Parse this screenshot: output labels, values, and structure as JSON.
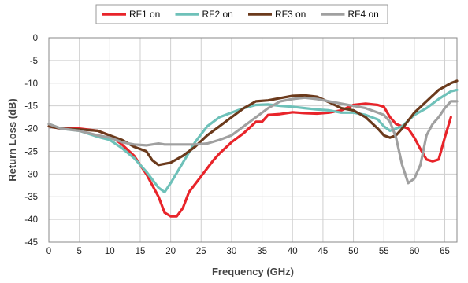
{
  "chart_data": {
    "type": "line",
    "xlabel": "Frequency (GHz)",
    "ylabel": "Return Loss (dB)",
    "xlim": [
      0,
      67
    ],
    "ylim": [
      -45,
      0
    ],
    "xticks": [
      0,
      5,
      10,
      15,
      20,
      25,
      30,
      35,
      40,
      45,
      50,
      55,
      60,
      65
    ],
    "yticks": [
      0,
      -5,
      -10,
      -15,
      -20,
      -25,
      -30,
      -35,
      -40,
      -45
    ],
    "grid": true,
    "legend_position": "top",
    "series": [
      {
        "name": "RF1 on",
        "color": "#e8242a",
        "points": [
          [
            0,
            -19.5
          ],
          [
            2,
            -20
          ],
          [
            5,
            -20
          ],
          [
            8,
            -20.5
          ],
          [
            10,
            -21.5
          ],
          [
            12,
            -23.5
          ],
          [
            14,
            -26
          ],
          [
            16,
            -30
          ],
          [
            18,
            -35
          ],
          [
            19,
            -38.5
          ],
          [
            20,
            -39.3
          ],
          [
            21,
            -39.3
          ],
          [
            22,
            -37.5
          ],
          [
            23,
            -34
          ],
          [
            25,
            -30.5
          ],
          [
            27,
            -27
          ],
          [
            28,
            -25.5
          ],
          [
            30,
            -23
          ],
          [
            32,
            -21
          ],
          [
            34,
            -18.5
          ],
          [
            35,
            -18.5
          ],
          [
            36,
            -17
          ],
          [
            38,
            -16.8
          ],
          [
            40,
            -16.4
          ],
          [
            42,
            -16.6
          ],
          [
            44,
            -16.7
          ],
          [
            46,
            -16.5
          ],
          [
            48,
            -16
          ],
          [
            50,
            -14.8
          ],
          [
            52,
            -14.5
          ],
          [
            54,
            -14.8
          ],
          [
            55,
            -15.2
          ],
          [
            56,
            -17.5
          ],
          [
            57,
            -19
          ],
          [
            59,
            -20
          ],
          [
            60,
            -22
          ],
          [
            61,
            -24.5
          ],
          [
            62,
            -26.8
          ],
          [
            63,
            -27.2
          ],
          [
            64,
            -26.8
          ],
          [
            65,
            -22
          ],
          [
            66,
            -17.5
          ]
        ]
      },
      {
        "name": "RF2 on",
        "color": "#6ec1b9",
        "points": [
          [
            0,
            -19
          ],
          [
            2,
            -20
          ],
          [
            5,
            -20.5
          ],
          [
            8,
            -21.8
          ],
          [
            10,
            -22.5
          ],
          [
            12,
            -24.3
          ],
          [
            14,
            -26.5
          ],
          [
            16,
            -29.5
          ],
          [
            18,
            -33
          ],
          [
            19,
            -34
          ],
          [
            20,
            -32
          ],
          [
            22,
            -27.5
          ],
          [
            24,
            -23
          ],
          [
            26,
            -19.5
          ],
          [
            28,
            -17.5
          ],
          [
            30,
            -16.5
          ],
          [
            32,
            -15.5
          ],
          [
            34,
            -14.8
          ],
          [
            36,
            -14.7
          ],
          [
            38,
            -15
          ],
          [
            40,
            -15.2
          ],
          [
            42,
            -15.5
          ],
          [
            44,
            -15.8
          ],
          [
            46,
            -16
          ],
          [
            48,
            -16.5
          ],
          [
            50,
            -16.5
          ],
          [
            52,
            -17
          ],
          [
            54,
            -18
          ],
          [
            55,
            -19.5
          ],
          [
            56,
            -20.5
          ],
          [
            58,
            -19.5
          ],
          [
            60,
            -17
          ],
          [
            62,
            -15.5
          ],
          [
            64,
            -13.5
          ],
          [
            66,
            -11.8
          ],
          [
            67,
            -11.5
          ]
        ]
      },
      {
        "name": "RF3 on",
        "color": "#6b3a1c",
        "points": [
          [
            0,
            -19.5
          ],
          [
            2,
            -20
          ],
          [
            5,
            -20.2
          ],
          [
            8,
            -20.5
          ],
          [
            10,
            -21.5
          ],
          [
            12,
            -22.5
          ],
          [
            14,
            -24
          ],
          [
            16,
            -25
          ],
          [
            17,
            -27
          ],
          [
            18,
            -28
          ],
          [
            20,
            -27.5
          ],
          [
            22,
            -26
          ],
          [
            24,
            -24
          ],
          [
            26,
            -21.5
          ],
          [
            28,
            -19.5
          ],
          [
            30,
            -17.5
          ],
          [
            32,
            -15.5
          ],
          [
            34,
            -14
          ],
          [
            36,
            -13.8
          ],
          [
            38,
            -13.3
          ],
          [
            40,
            -12.8
          ],
          [
            42,
            -12.7
          ],
          [
            44,
            -13
          ],
          [
            46,
            -14.2
          ],
          [
            48,
            -15.5
          ],
          [
            50,
            -16
          ],
          [
            52,
            -17.5
          ],
          [
            54,
            -20
          ],
          [
            55,
            -21.5
          ],
          [
            56,
            -22
          ],
          [
            57,
            -21.5
          ],
          [
            58,
            -20
          ],
          [
            60,
            -16.5
          ],
          [
            62,
            -14
          ],
          [
            64,
            -11.5
          ],
          [
            66,
            -10
          ],
          [
            67,
            -9.5
          ]
        ]
      },
      {
        "name": "RF4 on",
        "color": "#a0a0a0",
        "points": [
          [
            0,
            -19
          ],
          [
            2,
            -20
          ],
          [
            5,
            -20.5
          ],
          [
            8,
            -21.5
          ],
          [
            10,
            -22
          ],
          [
            12,
            -23
          ],
          [
            14,
            -23.5
          ],
          [
            16,
            -23.7
          ],
          [
            18,
            -23.3
          ],
          [
            19,
            -23.5
          ],
          [
            20,
            -23.5
          ],
          [
            22,
            -23.5
          ],
          [
            24,
            -23.5
          ],
          [
            26,
            -23.3
          ],
          [
            28,
            -22.5
          ],
          [
            30,
            -21.5
          ],
          [
            32,
            -19.5
          ],
          [
            34,
            -17.5
          ],
          [
            36,
            -15.5
          ],
          [
            38,
            -14
          ],
          [
            40,
            -13.5
          ],
          [
            42,
            -13.2
          ],
          [
            44,
            -13.5
          ],
          [
            46,
            -14
          ],
          [
            48,
            -14.5
          ],
          [
            50,
            -15
          ],
          [
            52,
            -15.5
          ],
          [
            54,
            -16.5
          ],
          [
            55,
            -17
          ],
          [
            56,
            -18.5
          ],
          [
            57,
            -22
          ],
          [
            58,
            -28
          ],
          [
            59,
            -32
          ],
          [
            60,
            -31
          ],
          [
            61,
            -28
          ],
          [
            62,
            -21.5
          ],
          [
            63,
            -19
          ],
          [
            64,
            -17.5
          ],
          [
            65,
            -15.5
          ],
          [
            66,
            -14
          ],
          [
            67,
            -14
          ]
        ]
      }
    ]
  }
}
